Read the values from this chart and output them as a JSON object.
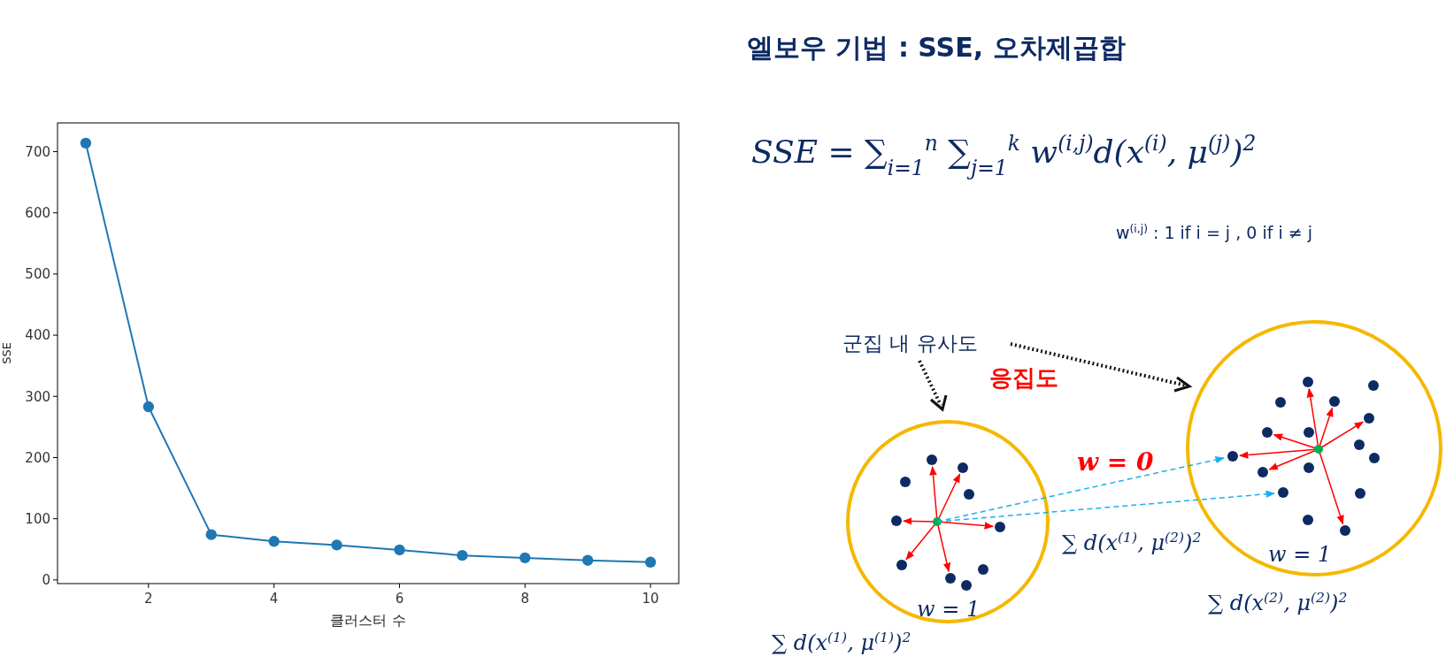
{
  "chart_data": {
    "type": "line",
    "title": "엘보우 기법 : SSE, 오차제곱합",
    "xlabel": "클러스터 수",
    "ylabel": "SSE",
    "x": [
      1,
      2,
      3,
      4,
      5,
      6,
      7,
      8,
      9,
      10
    ],
    "series": [
      {
        "color": "#1f77b4",
        "values": [
          714,
          283,
          74,
          63,
          57,
          49,
          40,
          36,
          32,
          29
        ]
      }
    ],
    "xlim": [
      0.55,
      10.45
    ],
    "ylim": [
      -6,
      747
    ],
    "xticks": [
      2,
      4,
      6,
      8,
      10
    ],
    "yticks": [
      0,
      100,
      200,
      300,
      400,
      500,
      600,
      700
    ],
    "marker": "circle",
    "line_style": "solid",
    "annotations": [
      "SSE = ∑$_{i=1}$$^{n}$ ∑$_{j=1}$$^{k}$ w$^{(i,j)}$d(x$^{(i)}$, μ$^{(j)}$)$^{2}$",
      "w$^{(i,j)}$ : 1 if i = j , 0 if i ≠ j",
      "군집 내 유사도",
      "응집도",
      "w = 0",
      "w = 1",
      "w = 1",
      "∑ d(x$^{(1)}$, μ$^{(1)}$)$^{2}$",
      "∑ d(x$^{(1)}$, μ$^{(2)}$)$^{2}$",
      "∑ d(x$^{(2)}$, μ$^{(2)}$)$^{2}$"
    ]
  }
}
